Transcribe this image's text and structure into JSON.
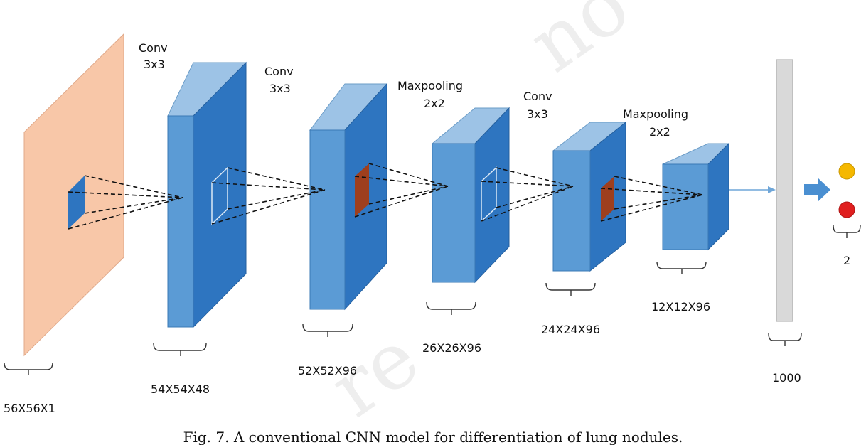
{
  "labels": {
    "op1_line1": "Conv",
    "op1_line2": "3x3",
    "op2_line1": "Conv",
    "op2_line2": "3x3",
    "op3_line1": "Maxpooling",
    "op3_line2": "2x2",
    "op4_line1": "Conv",
    "op4_line2": "3x3",
    "op5_line1": "Maxpooling",
    "op5_line2": "2x2"
  },
  "dims": {
    "input": "56X56X1",
    "layer1": "54X54X48",
    "layer2": "52X52X96",
    "layer3": "26X26X96",
    "layer4": "24X24X96",
    "layer5": "12X12X96",
    "fc": "1000",
    "output": "2"
  },
  "caption": "Fig. 7. A conventional CNN model for differentiation of lung nodules.",
  "colors": {
    "input_plane": "#f8c7a8",
    "block_front": "#5b9bd5",
    "block_side": "#2e75c0",
    "block_top": "#9dc3e6",
    "kernel_blue": "#2e75c0",
    "kernel_brown": "#9e3f1e",
    "fc_bar": "#d9d9d9",
    "arrow": "#4a8fd1",
    "out_yellow": "#f5b800",
    "out_red": "#e01f1f"
  }
}
